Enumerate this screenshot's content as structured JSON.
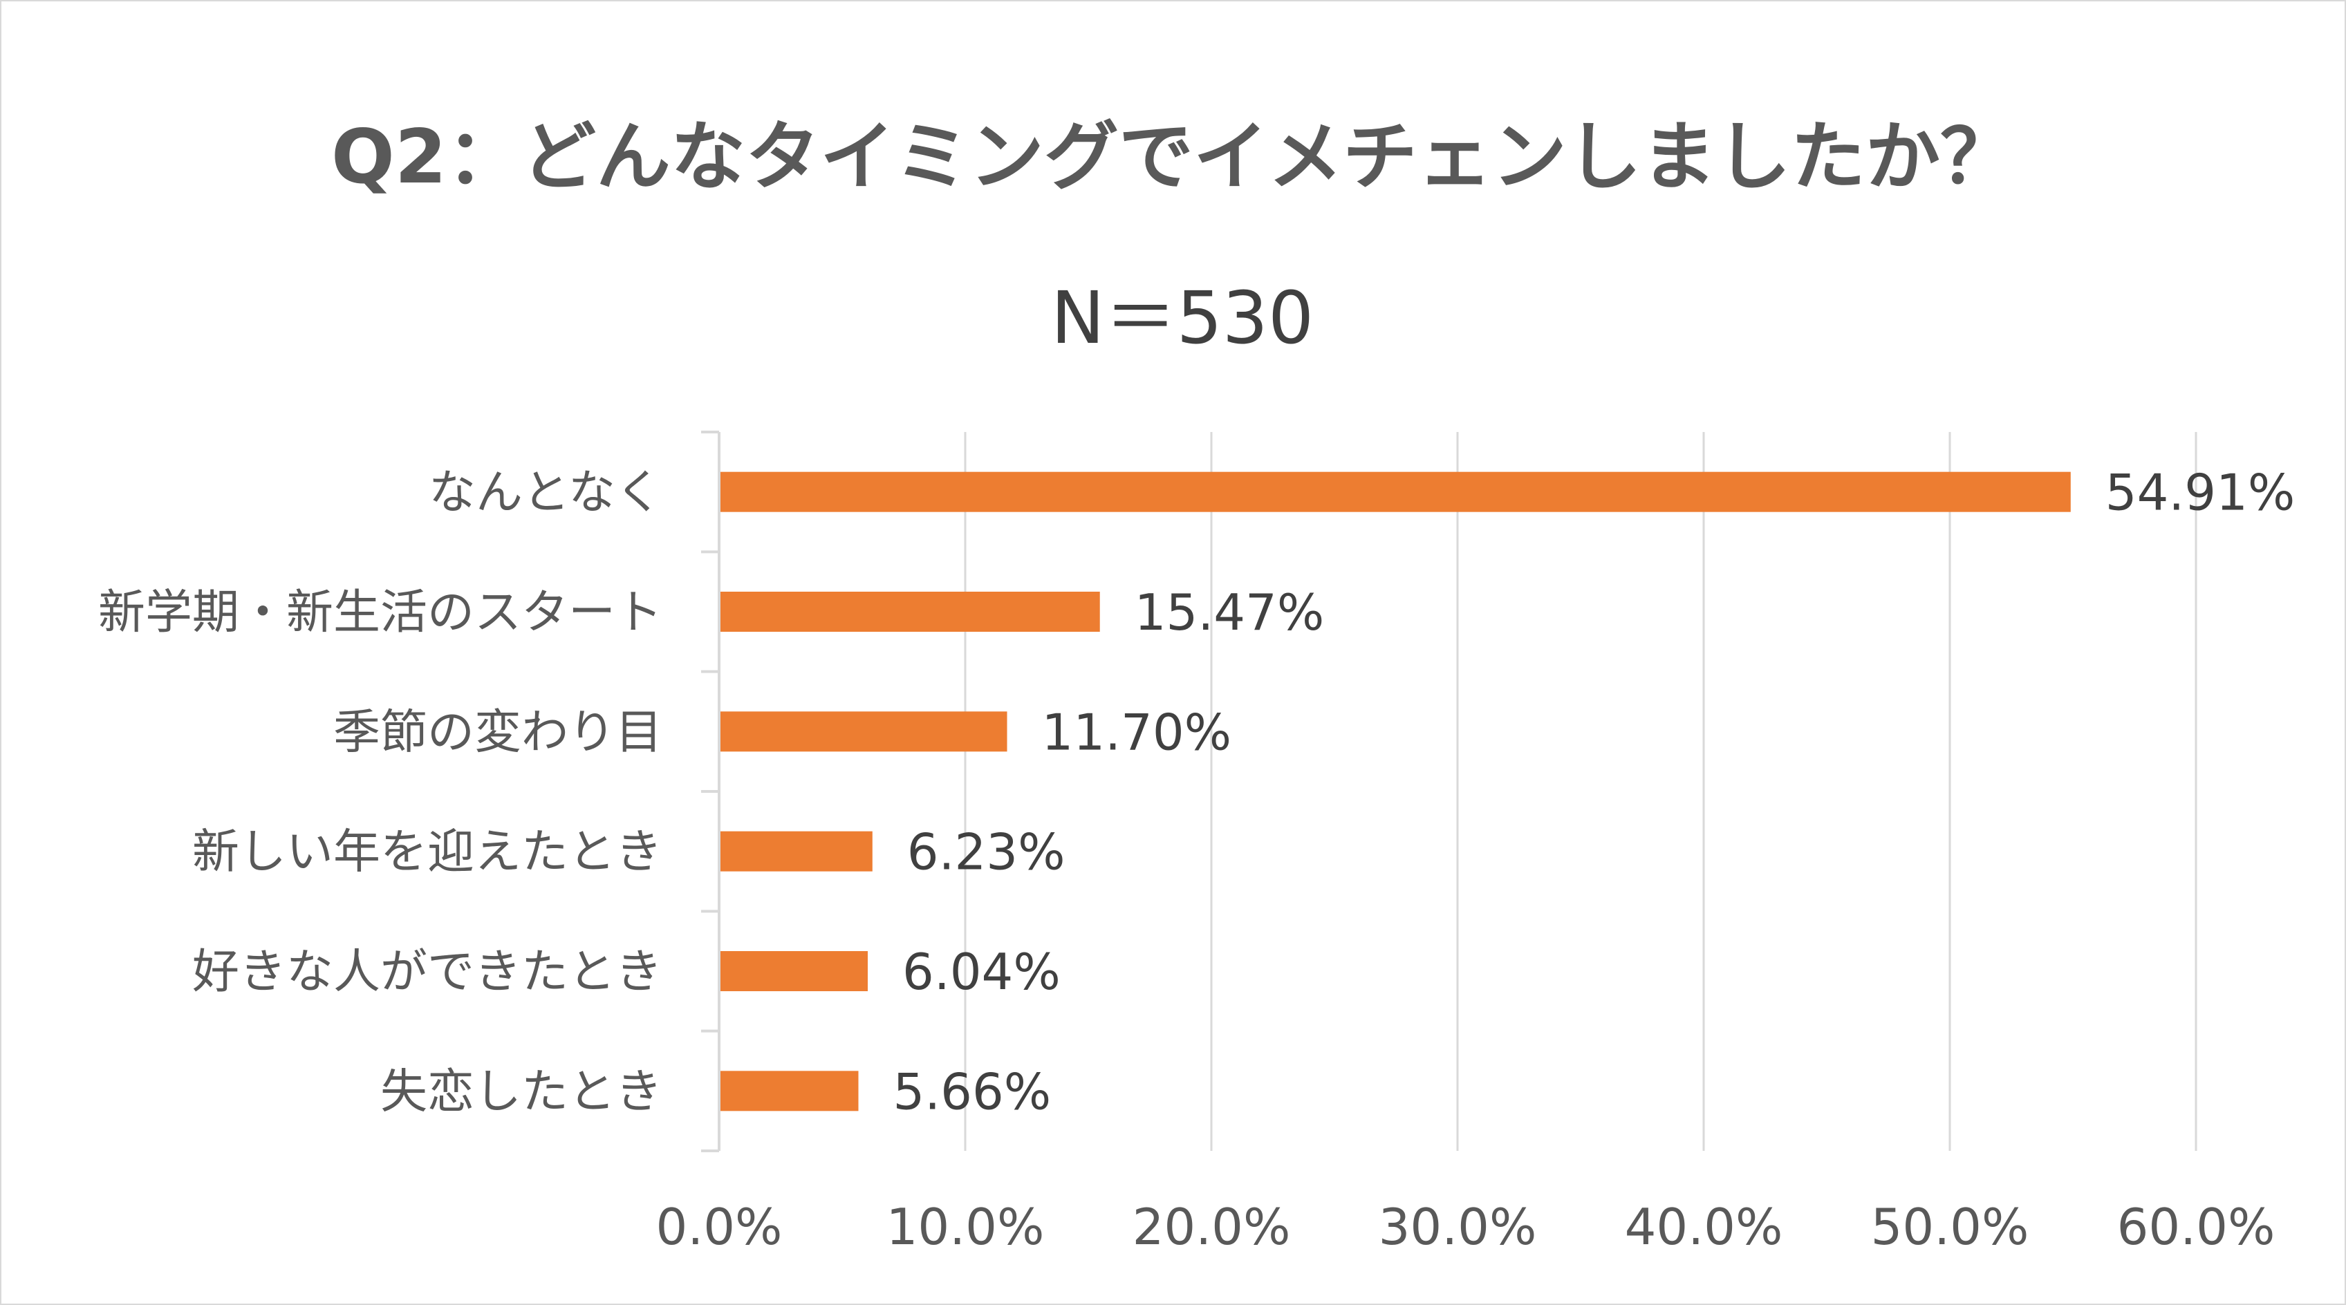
{
  "chart_data": {
    "type": "bar",
    "orientation": "horizontal",
    "title": "Q2：どんなタイミングでイメチェンしましたか？",
    "subtitle": "N＝530",
    "categories": [
      "なんとなく",
      "新学期・新生活のスタート",
      "季節の変わり目",
      "新しい年を迎えたとき",
      "好きな人ができたとき",
      "失恋したとき"
    ],
    "values": [
      54.91,
      15.47,
      11.7,
      6.23,
      6.04,
      5.66
    ],
    "data_labels": [
      "54.91%",
      "15.47%",
      "11.70%",
      "6.23%",
      "6.04%",
      "5.66%"
    ],
    "xlim": [
      0,
      60
    ],
    "x_ticks": [
      0,
      10,
      20,
      30,
      40,
      50,
      60
    ],
    "x_tick_labels": [
      "0.0%",
      "10.0%",
      "20.0%",
      "30.0%",
      "40.0%",
      "50.0%",
      "60.0%"
    ],
    "grid": true,
    "legend": "none",
    "bar_color": "#ed7d31",
    "gridline_color": "#d9d9d9",
    "text_color": "#595959"
  }
}
